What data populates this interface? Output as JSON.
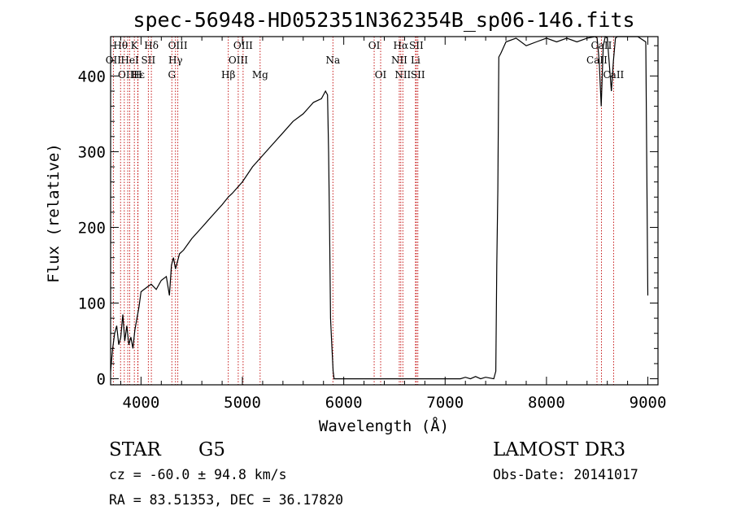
{
  "chart_data": {
    "type": "line",
    "title": "spec-56948-HD052351N362354B_sp06-146.fits",
    "xlabel": "Wavelength (Å)",
    "ylabel": "Flux (relative)",
    "xlim": [
      3700,
      9100
    ],
    "ylim": [
      -8,
      452
    ],
    "xticks": [
      4000,
      5000,
      6000,
      7000,
      8000,
      9000
    ],
    "yticks": [
      0,
      100,
      200,
      300,
      400
    ],
    "series": [
      {
        "name": "flux",
        "x": [
          3700,
          3720,
          3740,
          3760,
          3780,
          3800,
          3820,
          3840,
          3860,
          3880,
          3900,
          3920,
          3940,
          3960,
          3980,
          4000,
          4050,
          4100,
          4150,
          4200,
          4250,
          4280,
          4300,
          4320,
          4340,
          4380,
          4420,
          4500,
          4600,
          4700,
          4800,
          4860,
          4900,
          5000,
          5100,
          5200,
          5300,
          5400,
          5500,
          5600,
          5700,
          5780,
          5820,
          5840,
          5850,
          5860,
          5870,
          5880,
          5895,
          5905,
          5920,
          6000,
          6500,
          7000,
          7150,
          7200,
          7250,
          7300,
          7350,
          7400,
          7480,
          7500,
          7510,
          7520,
          7530,
          7550,
          7600,
          7700,
          7800,
          7900,
          8000,
          8100,
          8200,
          8300,
          8400,
          8480,
          8500,
          8520,
          8540,
          8560,
          8580,
          8600,
          8640,
          8660,
          8680,
          8700,
          8800,
          8900,
          8980,
          9000
        ],
        "y": [
          10,
          40,
          60,
          70,
          45,
          55,
          85,
          50,
          70,
          45,
          55,
          40,
          65,
          80,
          95,
          115,
          120,
          125,
          118,
          130,
          135,
          110,
          150,
          160,
          145,
          165,
          170,
          185,
          200,
          215,
          230,
          240,
          245,
          260,
          280,
          295,
          310,
          325,
          340,
          350,
          365,
          370,
          380,
          375,
          300,
          200,
          80,
          50,
          10,
          0,
          0,
          0,
          0,
          0,
          0,
          2,
          0,
          3,
          0,
          2,
          0,
          10,
          150,
          250,
          425,
          430,
          445,
          450,
          440,
          445,
          450,
          445,
          450,
          445,
          450,
          455,
          450,
          420,
          360,
          440,
          455,
          450,
          380,
          420,
          450,
          455,
          458,
          460,
          445,
          110
        ]
      }
    ],
    "emission_lines": [
      {
        "label": "Hθ",
        "wave": 3798,
        "row": 0
      },
      {
        "label": "K",
        "wave": 3934,
        "row": 0
      },
      {
        "label": "Hδ",
        "wave": 4102,
        "row": 0
      },
      {
        "label": "OIII",
        "wave": 4363,
        "row": 0
      },
      {
        "label": "OIII",
        "wave": 5007,
        "row": 0
      },
      {
        "label": "OI",
        "wave": 6300,
        "row": 0
      },
      {
        "label": "Hα",
        "wave": 6563,
        "row": 0
      },
      {
        "label": "SII",
        "wave": 6716,
        "row": 0
      },
      {
        "label": "CaII",
        "wave": 8542,
        "row": 0
      },
      {
        "label": "OII",
        "wave": 3727,
        "row": 1
      },
      {
        "label": "HeI",
        "wave": 3889,
        "row": 1
      },
      {
        "label": "SII",
        "wave": 4072,
        "row": 1
      },
      {
        "label": "Hγ",
        "wave": 4340,
        "row": 1
      },
      {
        "label": "OIII",
        "wave": 4959,
        "row": 1
      },
      {
        "label": "Na",
        "wave": 5893,
        "row": 1
      },
      {
        "label": "NII",
        "wave": 6548,
        "row": 1
      },
      {
        "label": "Li",
        "wave": 6708,
        "row": 1
      },
      {
        "label": "CaII",
        "wave": 8498,
        "row": 1
      },
      {
        "label": "OIII",
        "wave": 3869,
        "row": 2
      },
      {
        "label": "Hε",
        "wave": 3970,
        "row": 2
      },
      {
        "label": "H",
        "wave": 3968,
        "row": 2
      },
      {
        "label": "G",
        "wave": 4304,
        "row": 2
      },
      {
        "label": "Hβ",
        "wave": 4861,
        "row": 2
      },
      {
        "label": "Mg",
        "wave": 5175,
        "row": 2
      },
      {
        "label": "OI",
        "wave": 6364,
        "row": 2
      },
      {
        "label": "NII",
        "wave": 6583,
        "row": 2
      },
      {
        "label": "SII",
        "wave": 6731,
        "row": 2
      },
      {
        "label": "CaII",
        "wave": 8662,
        "row": 2
      }
    ],
    "extra_markers": [
      3835,
      3889,
      3934,
      3968,
      4102,
      4304,
      4340,
      4363,
      4861,
      4959,
      5007,
      5175,
      5893,
      6300,
      6364,
      6548,
      6563,
      6583,
      6708,
      6716,
      6731,
      8498,
      8542,
      8662
    ]
  },
  "info": {
    "class_label": "STAR",
    "subclass": "G5",
    "survey": "LAMOST DR3",
    "cz": "cz = -60.0 ± 94.8 km/s",
    "obs_date": "Obs-Date: 20141017",
    "coords": "RA =  83.51353, DEC =  36.17820"
  }
}
